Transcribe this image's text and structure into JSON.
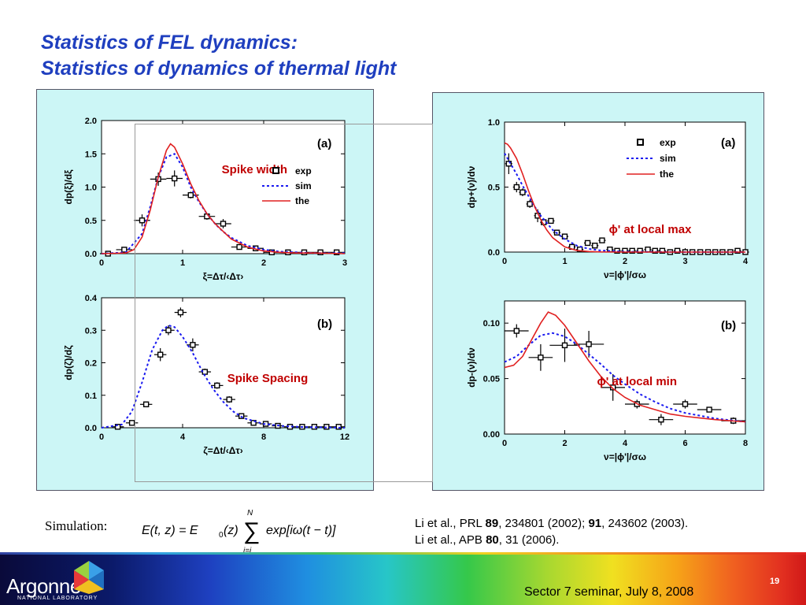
{
  "slide": {
    "title_line1": "Statistics of FEL dynamics:",
    "title_line2": "Statistics of dynamics of thermal light",
    "page_number": "19",
    "footer_text": "Sector 7 seminar, July 8, 2008",
    "logo_name": "Argonne",
    "logo_sub": "NATIONAL LABORATORY"
  },
  "simulation": {
    "label": "Simulation:",
    "formula_lhs": "E(t, z) = E",
    "formula_sum_top": "N",
    "formula_sum_bottom": "j=i",
    "formula_rhs": "exp[iω(t − t)]"
  },
  "references": {
    "line1_pre": "Li et al., PRL ",
    "line1_vol1": "89",
    "line1_mid": ", 234801 (2002); ",
    "line1_vol2": "91",
    "line1_post": ", 243602 (2003).",
    "line2_pre": "Li et al., APB ",
    "line2_vol": "80",
    "line2_post": ", 31 (2006)."
  },
  "colors": {
    "title": "#1f3fbf",
    "panel": "#ccf6f6",
    "sim": "#1a1af0",
    "the": "#e02020",
    "annotation": "#c00000"
  },
  "chart_data": [
    {
      "id": "c1",
      "type": "scatter",
      "panel_label": "(a)",
      "annotation": "Spike width",
      "xlabel": "ξ=Δτ/‹Δτ›",
      "ylabel": "dp(ξ)/dξ",
      "xlim": [
        0,
        3
      ],
      "ylim": [
        0,
        2
      ],
      "xticks": [
        0,
        1,
        2,
        3
      ],
      "yticks": [
        0,
        0.5,
        1,
        1.5,
        2
      ],
      "xtick_labels": [
        "0",
        "1",
        "2",
        "3"
      ],
      "ytick_labels": [
        "0.0",
        "0.5",
        "1.0",
        "1.5",
        "2.0"
      ],
      "legend": [
        "exp",
        "sim",
        "the"
      ],
      "legend_position": "right-middle",
      "series": [
        {
          "name": "exp",
          "kind": "points",
          "x": [
            0.08,
            0.28,
            0.5,
            0.7,
            0.9,
            1.1,
            1.3,
            1.5,
            1.7,
            1.9,
            2.1,
            2.3,
            2.5,
            2.7,
            2.9
          ],
          "y": [
            0.0,
            0.06,
            0.5,
            1.12,
            1.13,
            0.88,
            0.56,
            0.45,
            0.1,
            0.08,
            0.02,
            0.02,
            0.02,
            0.02,
            0.02
          ],
          "yerr": [
            0.02,
            0.02,
            0.09,
            0.1,
            0.12,
            0.05,
            0.05,
            0.07,
            0.03,
            0.02,
            0.02,
            0.02,
            0.02,
            0.02,
            0.02
          ],
          "xerr": 0.1
        },
        {
          "name": "sim",
          "kind": "line",
          "x": [
            0,
            0.3,
            0.5,
            0.6,
            0.7,
            0.8,
            0.9,
            1.0,
            1.1,
            1.2,
            1.3,
            1.4,
            1.5,
            1.6,
            1.8,
            2.0,
            2.2,
            2.4,
            2.6,
            2.8,
            3.0
          ],
          "y": [
            0,
            0.02,
            0.3,
            0.7,
            1.15,
            1.45,
            1.5,
            1.3,
            1.0,
            0.78,
            0.6,
            0.45,
            0.33,
            0.24,
            0.12,
            0.06,
            0.03,
            0.02,
            0.01,
            0.01,
            0.01
          ]
        },
        {
          "name": "the",
          "kind": "line",
          "x": [
            0,
            0.3,
            0.4,
            0.5,
            0.6,
            0.7,
            0.8,
            0.85,
            0.9,
            1.0,
            1.1,
            1.2,
            1.3,
            1.4,
            1.6,
            1.8,
            2.0,
            2.2,
            2.4,
            2.6,
            3.0
          ],
          "y": [
            0,
            0.01,
            0.06,
            0.25,
            0.65,
            1.15,
            1.55,
            1.65,
            1.6,
            1.35,
            1.05,
            0.8,
            0.6,
            0.45,
            0.22,
            0.1,
            0.04,
            0.02,
            0.01,
            0.01,
            0.0
          ]
        }
      ]
    },
    {
      "id": "c2",
      "type": "scatter",
      "panel_label": "(b)",
      "annotation": "Spike Spacing",
      "xlabel": "ζ=Δt/‹Δτ›",
      "ylabel": "dp(ζ)/dζ",
      "xlim": [
        0,
        12
      ],
      "ylim": [
        0,
        0.4
      ],
      "xticks": [
        0,
        4,
        8,
        12
      ],
      "yticks": [
        0,
        0.1,
        0.2,
        0.3,
        0.4
      ],
      "xtick_labels": [
        "0",
        "4",
        "8",
        "12"
      ],
      "ytick_labels": [
        "0.0",
        "0.1",
        "0.2",
        "0.3",
        "0.4"
      ],
      "series": [
        {
          "name": "exp",
          "kind": "points",
          "x": [
            0.8,
            1.5,
            2.2,
            2.9,
            3.3,
            3.9,
            4.5,
            5.1,
            5.7,
            6.3,
            6.9,
            7.5,
            8.1,
            8.7,
            9.3,
            9.9,
            10.5,
            11.1,
            11.7
          ],
          "y": [
            0.003,
            0.015,
            0.072,
            0.225,
            0.3,
            0.355,
            0.255,
            0.172,
            0.13,
            0.087,
            0.036,
            0.015,
            0.012,
            0.006,
            0.003,
            0.003,
            0.003,
            0.003,
            0.003
          ],
          "yerr": [
            0.003,
            0.005,
            0.008,
            0.02,
            0.015,
            0.015,
            0.02,
            0.01,
            0.01,
            0.01,
            0.006,
            0.004,
            0.003,
            0.002,
            0.002,
            0.002,
            0.002,
            0.002,
            0.002
          ],
          "xerr": 0.3
        },
        {
          "name": "sim",
          "kind": "line",
          "x": [
            0,
            1,
            1.5,
            2,
            2.5,
            3,
            3.3,
            3.6,
            4,
            4.5,
            5,
            5.5,
            6,
            6.5,
            7,
            8,
            9,
            10,
            11,
            12
          ],
          "y": [
            0,
            0.01,
            0.05,
            0.14,
            0.24,
            0.3,
            0.315,
            0.31,
            0.28,
            0.23,
            0.17,
            0.12,
            0.08,
            0.05,
            0.03,
            0.012,
            0.005,
            0.002,
            0.001,
            0
          ]
        }
      ]
    },
    {
      "id": "c3",
      "type": "scatter",
      "panel_label": "(a)",
      "annotation": "ϕ' at local max",
      "xlabel": "ν=|ϕ'|/σω",
      "ylabel": "dp+(ν)/dν",
      "xlim": [
        0,
        4
      ],
      "ylim": [
        0,
        1.0
      ],
      "xticks": [
        0,
        1,
        2,
        3,
        4
      ],
      "yticks": [
        0,
        0.5,
        1.0
      ],
      "xtick_labels": [
        "0",
        "1",
        "2",
        "3",
        "4"
      ],
      "ytick_labels": [
        "0.0",
        "0.5",
        "1.0"
      ],
      "legend": [
        "exp",
        "sim",
        "the"
      ],
      "legend_position": "top-right",
      "series": [
        {
          "name": "exp",
          "kind": "points",
          "x": [
            0.07,
            0.2,
            0.3,
            0.42,
            0.55,
            0.65,
            0.77,
            0.87,
            1.0,
            1.12,
            1.25,
            1.38,
            1.5,
            1.62,
            1.75,
            1.87,
            2.0,
            2.12,
            2.25,
            2.38,
            2.5,
            2.62,
            2.75,
            2.87,
            3.0,
            3.12,
            3.25,
            3.38,
            3.5,
            3.62,
            3.75,
            3.87,
            4.0
          ],
          "y": [
            0.68,
            0.5,
            0.46,
            0.37,
            0.28,
            0.23,
            0.24,
            0.15,
            0.12,
            0.04,
            0.02,
            0.07,
            0.05,
            0.09,
            0.02,
            0.01,
            0.01,
            0.01,
            0.01,
            0.02,
            0.01,
            0.01,
            0.0,
            0.01,
            0.0,
            0.0,
            0.0,
            0.0,
            0.0,
            0.0,
            0.0,
            0.01,
            0.0
          ],
          "yerr": [
            0.08,
            0.04,
            0.03,
            0.03,
            0.05,
            0.03,
            0.02,
            0.02,
            0.02,
            0.01,
            0.01,
            0.01,
            0.01,
            0.02,
            0.01,
            0.01,
            0.01,
            0.01,
            0.01,
            0.01,
            0.01,
            0.01,
            0.01,
            0.01,
            0.01,
            0.01,
            0.01,
            0.01,
            0.01,
            0.01,
            0.01,
            0.01,
            0.01
          ],
          "xerr": 0.06
        },
        {
          "name": "sim",
          "kind": "line",
          "x": [
            0,
            0.1,
            0.2,
            0.3,
            0.4,
            0.5,
            0.6,
            0.8,
            1.0,
            1.2,
            1.4,
            1.6,
            2.0,
            2.5,
            3.0,
            4.0
          ],
          "y": [
            0.76,
            0.68,
            0.6,
            0.51,
            0.43,
            0.35,
            0.28,
            0.17,
            0.1,
            0.05,
            0.025,
            0.012,
            0.003,
            0.001,
            0,
            0
          ]
        },
        {
          "name": "the",
          "kind": "line",
          "x": [
            0,
            0.05,
            0.1,
            0.2,
            0.3,
            0.4,
            0.5,
            0.6,
            0.7,
            0.8,
            1.0,
            1.2,
            1.4,
            1.6,
            2.0,
            2.5,
            3.0,
            4.0
          ],
          "y": [
            0.84,
            0.83,
            0.8,
            0.72,
            0.6,
            0.47,
            0.35,
            0.25,
            0.17,
            0.11,
            0.04,
            0.013,
            0.004,
            0.001,
            0,
            0,
            0,
            0
          ]
        }
      ]
    },
    {
      "id": "c4",
      "type": "scatter",
      "panel_label": "(b)",
      "annotation": "ϕ' at local min",
      "xlabel": "ν=|ϕ'|/σω",
      "ylabel": "dp-(ν)/dν",
      "xlim": [
        0,
        8
      ],
      "ylim": [
        0,
        0.12
      ],
      "xticks": [
        0,
        2,
        4,
        6,
        8
      ],
      "yticks": [
        0,
        0.05,
        0.1
      ],
      "xtick_labels": [
        "0",
        "2",
        "4",
        "6",
        "8"
      ],
      "ytick_labels": [
        "0.00",
        "0.05",
        "0.10"
      ],
      "series": [
        {
          "name": "exp",
          "kind": "points",
          "x": [
            0.4,
            1.2,
            2.0,
            2.8,
            3.6,
            4.4,
            5.2,
            6.0,
            6.8,
            7.6
          ],
          "y": [
            0.093,
            0.069,
            0.08,
            0.081,
            0.042,
            0.027,
            0.013,
            0.027,
            0.022,
            0.012
          ],
          "yerr": [
            0.006,
            0.012,
            0.015,
            0.012,
            0.012,
            0.004,
            0.005,
            0.004,
            0.002,
            0.003
          ],
          "xerr": [
            0.4,
            0.4,
            0.5,
            0.5,
            0.4,
            0.4,
            0.4,
            0.4,
            0.4,
            0.4
          ]
        },
        {
          "name": "sim",
          "kind": "line",
          "x": [
            0,
            0.4,
            0.8,
            1.2,
            1.6,
            2.0,
            2.4,
            2.8,
            3.2,
            3.6,
            4.0,
            4.5,
            5.0,
            5.5,
            6.0,
            7.0,
            8.0
          ],
          "y": [
            0.065,
            0.07,
            0.08,
            0.089,
            0.091,
            0.088,
            0.081,
            0.072,
            0.063,
            0.053,
            0.045,
            0.036,
            0.029,
            0.023,
            0.019,
            0.014,
            0.011
          ]
        },
        {
          "name": "the",
          "kind": "line",
          "x": [
            0,
            0.3,
            0.6,
            0.9,
            1.2,
            1.45,
            1.7,
            2.0,
            2.4,
            2.8,
            3.2,
            3.6,
            4.0,
            4.5,
            5.0,
            5.5,
            6.0,
            7.0,
            8.0
          ],
          "y": [
            0.06,
            0.062,
            0.07,
            0.085,
            0.1,
            0.11,
            0.107,
            0.098,
            0.082,
            0.066,
            0.052,
            0.041,
            0.033,
            0.026,
            0.022,
            0.018,
            0.016,
            0.013,
            0.011
          ]
        }
      ]
    }
  ]
}
